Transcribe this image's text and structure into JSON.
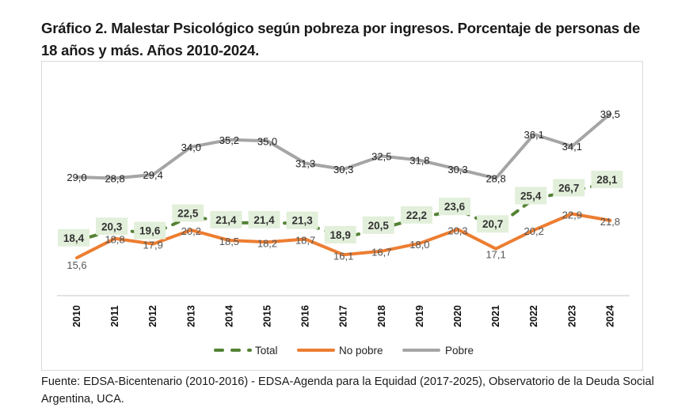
{
  "header": {
    "title": "Gráfico 2. Malestar Psicológico según pobreza por ingresos. Porcentaje de personas de 18 años y más. Años 2010-2024."
  },
  "footer": {
    "source": "Fuente: EDSA-Bicentenario (2010-2016) - EDSA-Agenda para la Equidad (2017-2025), Observatorio de la Deuda Social Argentina, UCA."
  },
  "chart_data": {
    "type": "line",
    "title": "Gráfico 2. Malestar Psicológico según pobreza por ingresos. Porcentaje de personas de 18 años y más. Años 2010-2024.",
    "xlabel": "",
    "ylabel": "",
    "categories": [
      "2010",
      "2011",
      "2012",
      "2013",
      "2014",
      "2015",
      "2016",
      "2017",
      "2018",
      "2019",
      "2020",
      "2021",
      "2022",
      "2023",
      "2024"
    ],
    "ylim": [
      9,
      42
    ],
    "grid": false,
    "y_axis_visible": false,
    "legend_position": "bottom",
    "series": [
      {
        "name": "Total",
        "style": "dashed",
        "color": "#548235",
        "label_box_color": "#e2efda",
        "values": [
          18.4,
          20.3,
          19.6,
          22.5,
          21.4,
          21.4,
          21.3,
          18.9,
          20.5,
          22.2,
          23.6,
          20.7,
          25.4,
          26.7,
          28.1
        ],
        "labels": [
          "18,4",
          "20,3",
          "19,6",
          "22,5",
          "21,4",
          "21,4",
          "21,3",
          "18,9",
          "20,5",
          "22,2",
          "23,6",
          "20,7",
          "25,4",
          "26,7",
          "28,1"
        ]
      },
      {
        "name": "No pobre",
        "style": "solid",
        "color": "#ed7d31",
        "values": [
          15.6,
          18.8,
          17.9,
          20.2,
          18.5,
          18.2,
          18.7,
          16.1,
          16.7,
          18.0,
          20.3,
          17.1,
          20.2,
          22.9,
          21.8
        ],
        "labels": [
          "15,6",
          "18,8",
          "17,9",
          "20,2",
          "18,5",
          "18,2",
          "18,7",
          "16,1",
          "16,7",
          "18,0",
          "20,3",
          "17,1",
          "20,2",
          "22,9",
          "21,8"
        ]
      },
      {
        "name": "Pobre",
        "style": "solid",
        "color": "#a5a5a5",
        "values": [
          29.0,
          28.8,
          29.4,
          34.0,
          35.2,
          35.0,
          31.3,
          30.3,
          32.5,
          31.8,
          30.3,
          28.8,
          36.1,
          34.1,
          39.5
        ],
        "labels": [
          "29,0",
          "28,8",
          "29,4",
          "34,0",
          "35,2",
          "35,0",
          "31,3",
          "30,3",
          "32,5",
          "31,8",
          "30,3",
          "28,8",
          "36,1",
          "34,1",
          "39,5"
        ]
      }
    ],
    "legend": [
      "Total",
      "No pobre",
      "Pobre"
    ]
  }
}
